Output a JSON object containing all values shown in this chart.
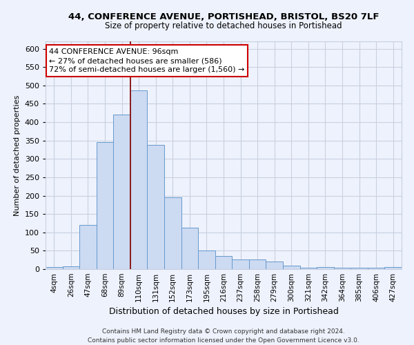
{
  "title_line1": "44, CONFERENCE AVENUE, PORTISHEAD, BRISTOL, BS20 7LF",
  "title_line2": "Size of property relative to detached houses in Portishead",
  "xlabel": "Distribution of detached houses by size in Portishead",
  "ylabel": "Number of detached properties",
  "categories": [
    "4sqm",
    "26sqm",
    "47sqm",
    "68sqm",
    "89sqm",
    "110sqm",
    "131sqm",
    "152sqm",
    "173sqm",
    "195sqm",
    "216sqm",
    "237sqm",
    "258sqm",
    "279sqm",
    "300sqm",
    "321sqm",
    "342sqm",
    "364sqm",
    "385sqm",
    "406sqm",
    "427sqm"
  ],
  "values": [
    5,
    8,
    120,
    345,
    420,
    487,
    338,
    195,
    112,
    50,
    35,
    27,
    27,
    20,
    10,
    3,
    5,
    4,
    4,
    3,
    5
  ],
  "bar_color": "#ccdaf2",
  "bar_edge_color": "#6699cc",
  "ylim": [
    0,
    620
  ],
  "yticks": [
    0,
    50,
    100,
    150,
    200,
    250,
    300,
    350,
    400,
    450,
    500,
    550,
    600
  ],
  "vline_x": 4.5,
  "vline_color": "#8b1a1a",
  "annotation_text_line1": "44 CONFERENCE AVENUE: 96sqm",
  "annotation_text_line2": "← 27% of detached houses are smaller (586)",
  "annotation_text_line3": "72% of semi-detached houses are larger (1,560) →",
  "annotation_box_facecolor": "#ffffff",
  "annotation_box_edgecolor": "#cc0000",
  "footer_line1": "Contains HM Land Registry data © Crown copyright and database right 2024.",
  "footer_line2": "Contains public sector information licensed under the Open Government Licence v3.0.",
  "bg_color": "#eef2fc",
  "grid_color": "#c8d0e0",
  "title1_fontsize": 9.5,
  "title2_fontsize": 8.5,
  "ylabel_fontsize": 8,
  "xlabel_fontsize": 9,
  "tick_fontsize": 7.5,
  "ytick_fontsize": 8,
  "footer_fontsize": 6.5,
  "annotation_fontsize": 8
}
